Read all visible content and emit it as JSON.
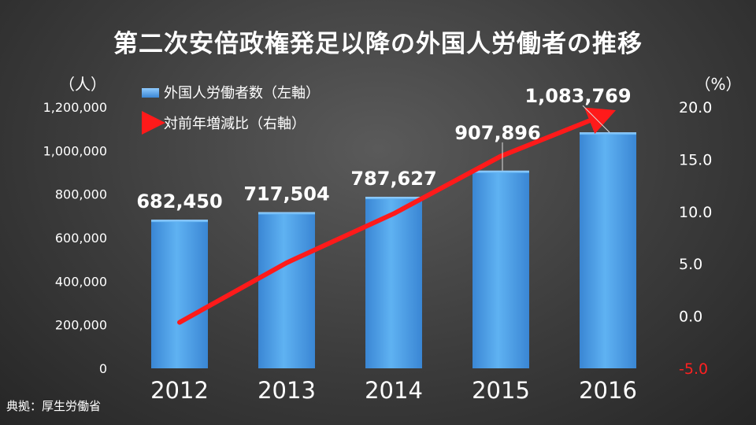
{
  "title": "第二次安倍政権発足以降の外国人労働者の推移",
  "source": "典拠：厚生労働省",
  "chart_data": {
    "type": "bar",
    "categories": [
      "2012",
      "2013",
      "2014",
      "2015",
      "2016"
    ],
    "series": [
      {
        "name": "外国人労働者数（左軸）",
        "type": "bar",
        "axis": "left",
        "values": [
          682450,
          717504,
          787627,
          907896,
          1083769
        ],
        "data_labels": [
          "682,450",
          "717,504",
          "787,627",
          "907,896",
          "1,083,769"
        ],
        "color": "#4a9fe8"
      },
      {
        "name": "対前年増減比（右軸）",
        "type": "line",
        "axis": "right",
        "values": [
          -0.6,
          5.1,
          9.8,
          15.3,
          19.4
        ],
        "color": "#ff1a1a"
      }
    ],
    "y_left": {
      "label": "（人）",
      "ylim": [
        0,
        1200000
      ],
      "ticks": [
        "0",
        "200,000",
        "400,000",
        "600,000",
        "800,000",
        "1,000,000",
        "1,200,000"
      ]
    },
    "y_right": {
      "label": "（%）",
      "ylim": [
        -5,
        20
      ],
      "ticks": [
        "-5.0",
        "0.0",
        "5.0",
        "10.0",
        "15.0",
        "20.0"
      ],
      "negative_tick_color": "#ff2020"
    },
    "grid": false,
    "legend_position": "top-left"
  }
}
